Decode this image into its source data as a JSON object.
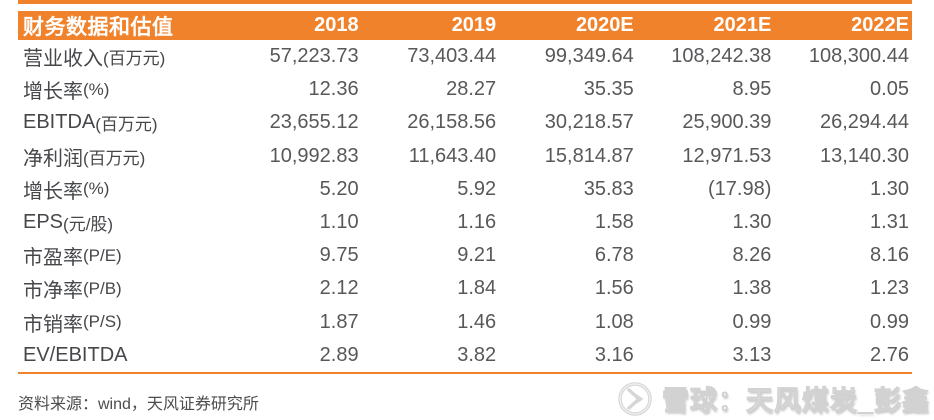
{
  "accent_color": "#F0822C",
  "table": {
    "title": "财务数据和估值",
    "columns": [
      "2018",
      "2019",
      "2020E",
      "2021E",
      "2022E"
    ],
    "rows": [
      {
        "label": "营业收入",
        "suffix": "(百万元)",
        "values": [
          "57,223.73",
          "73,403.44",
          "99,349.64",
          "108,242.38",
          "108,300.44"
        ]
      },
      {
        "label": "增长率",
        "suffix": "(%)",
        "values": [
          "12.36",
          "28.27",
          "35.35",
          "8.95",
          "0.05"
        ]
      },
      {
        "label": "EBITDA",
        "suffix": "(百万元)",
        "values": [
          "23,655.12",
          "26,158.56",
          "30,218.57",
          "25,900.39",
          "26,294.44"
        ]
      },
      {
        "label": "净利润",
        "suffix": "(百万元)",
        "values": [
          "10,992.83",
          "11,643.40",
          "15,814.87",
          "12,971.53",
          "13,140.30"
        ]
      },
      {
        "label": "增长率",
        "suffix": "(%)",
        "values": [
          "5.20",
          "5.92",
          "35.83",
          "(17.98)",
          "1.30"
        ]
      },
      {
        "label": "EPS",
        "suffix": "(元/股)",
        "values": [
          "1.10",
          "1.16",
          "1.58",
          "1.30",
          "1.31"
        ]
      },
      {
        "label": "市盈率",
        "suffix": "(P/E)",
        "values": [
          "9.75",
          "9.21",
          "6.78",
          "8.26",
          "8.16"
        ]
      },
      {
        "label": "市净率",
        "suffix": "(P/B)",
        "values": [
          "2.12",
          "1.84",
          "1.56",
          "1.38",
          "1.23"
        ]
      },
      {
        "label": "市销率",
        "suffix": "(P/S)",
        "values": [
          "1.87",
          "1.46",
          "1.08",
          "0.99",
          "0.99"
        ]
      },
      {
        "label": "EV/EBITDA",
        "suffix": "",
        "values": [
          "2.89",
          "3.82",
          "3.16",
          "3.13",
          "2.76"
        ]
      }
    ]
  },
  "footer": {
    "source": "资料来源：wind，天风证券研究所"
  },
  "watermark": {
    "text": "雪球：天风煤炭_彭鑫",
    "logo": "xueqiu-logo"
  }
}
